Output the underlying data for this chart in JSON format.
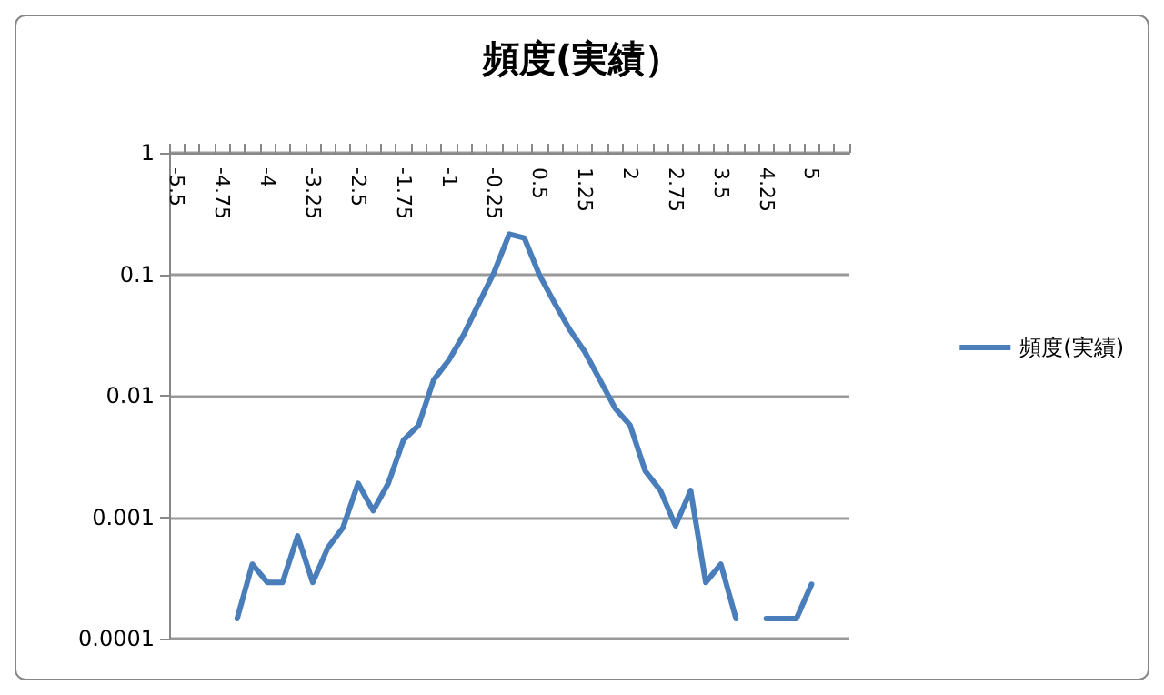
{
  "chart_data": {
    "type": "line",
    "title": "頻度(実績）",
    "categories": [
      "-5.5",
      null,
      null,
      "-4.75",
      null,
      null,
      "-4",
      null,
      null,
      "-3.25",
      null,
      null,
      "-2.5",
      null,
      null,
      "-1.75",
      null,
      null,
      "-1",
      null,
      null,
      "-0.25",
      null,
      null,
      "0.5",
      null,
      null,
      "1.25",
      null,
      null,
      "2",
      null,
      null,
      "2.75",
      null,
      null,
      "3.5",
      null,
      null,
      "4.25",
      null,
      null,
      "5",
      null,
      null
    ],
    "series": [
      {
        "name": "頻度(実績)",
        "color": "#4a7ebb",
        "values": [
          null,
          null,
          null,
          null,
          0.000146,
          0.00041,
          0.00029,
          0.00029,
          0.0007,
          0.00029,
          0.00056,
          0.00082,
          0.0019,
          0.00113,
          0.0019,
          0.0043,
          0.0057,
          0.0135,
          0.0196,
          0.032,
          0.058,
          0.104,
          0.214,
          0.199,
          0.0986,
          0.058,
          0.035,
          0.023,
          0.0135,
          0.0079,
          0.0057,
          0.0024,
          0.00166,
          0.00085,
          0.00166,
          0.00029,
          0.00041,
          0.000146,
          null,
          0.000146,
          0.000146,
          0.000146,
          0.00028,
          null,
          null
        ]
      }
    ],
    "log": "y",
    "ylim": [
      0.0001,
      1
    ],
    "yticks": [
      0.0001,
      0.001,
      0.01,
      0.1,
      1
    ],
    "grid": "y",
    "legend": "right",
    "marker": "none"
  }
}
